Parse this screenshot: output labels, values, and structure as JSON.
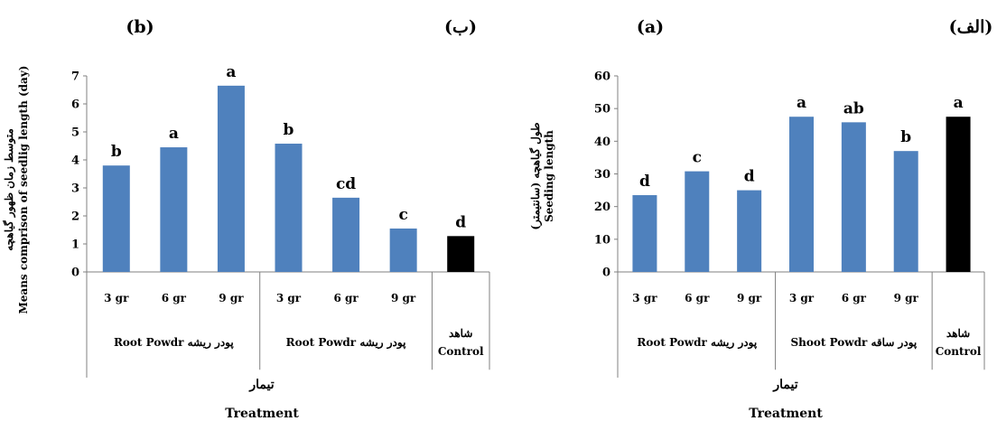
{
  "chart_data": [
    {
      "type": "bar",
      "panel_label_latin": "(b)",
      "panel_label_persian": "(ب)",
      "ylabel_persian": "متوسط زمان ظهور گیاهچه",
      "ylabel": "Means comprison of seedlig length (day)",
      "xlabel_persian": "تیمار",
      "xlabel": "Treatment",
      "ylim": [
        0,
        7
      ],
      "yticks": [
        0,
        1,
        2,
        3,
        4,
        5,
        6,
        7
      ],
      "categories": [
        "3 gr",
        "6 gr",
        "9 gr",
        "3 gr",
        "6 gr",
        "9 gr",
        ""
      ],
      "values": [
        3.8,
        4.45,
        6.65,
        4.58,
        2.65,
        1.55,
        1.28
      ],
      "letters": [
        "b",
        "a",
        "a",
        "b",
        "cd",
        "c",
        "d"
      ],
      "colors": [
        "#4f81bd",
        "#4f81bd",
        "#4f81bd",
        "#4f81bd",
        "#4f81bd",
        "#4f81bd",
        "#000000"
      ],
      "groups": [
        {
          "label": "Root Powdr پودر ریشه",
          "span": [
            0,
            2
          ]
        },
        {
          "label": "Root Powdr پودر ریشه",
          "span": [
            3,
            5
          ]
        },
        {
          "label": "شاهد Control",
          "span": [
            6,
            6
          ]
        }
      ],
      "grid": false
    },
    {
      "type": "bar",
      "panel_label_latin": "(a)",
      "panel_label_persian": "(الف)",
      "ylabel_persian": "طول گیاهچه (سانتیمتر)",
      "ylabel": "Seeding length",
      "xlabel_persian": "تیمار",
      "xlabel": "Treatment",
      "ylim": [
        0,
        60
      ],
      "yticks": [
        0,
        10,
        20,
        30,
        40,
        50,
        60
      ],
      "categories": [
        "3 gr",
        "6 gr",
        "9 gr",
        "3 gr",
        "6 gr",
        "9 gr",
        ""
      ],
      "values": [
        23.5,
        30.8,
        25,
        47.5,
        45.8,
        37,
        47.5
      ],
      "letters": [
        "d",
        "c",
        "d",
        "a",
        "ab",
        "b",
        "a"
      ],
      "colors": [
        "#4f81bd",
        "#4f81bd",
        "#4f81bd",
        "#4f81bd",
        "#4f81bd",
        "#4f81bd",
        "#000000"
      ],
      "groups": [
        {
          "label": "Root Powdr پودر ریشه",
          "span": [
            0,
            2
          ]
        },
        {
          "label": "Shoot Powdr پودر ساقه",
          "span": [
            3,
            5
          ]
        },
        {
          "label": "شاهد Control",
          "span": [
            6,
            6
          ]
        }
      ],
      "grid": false
    }
  ]
}
